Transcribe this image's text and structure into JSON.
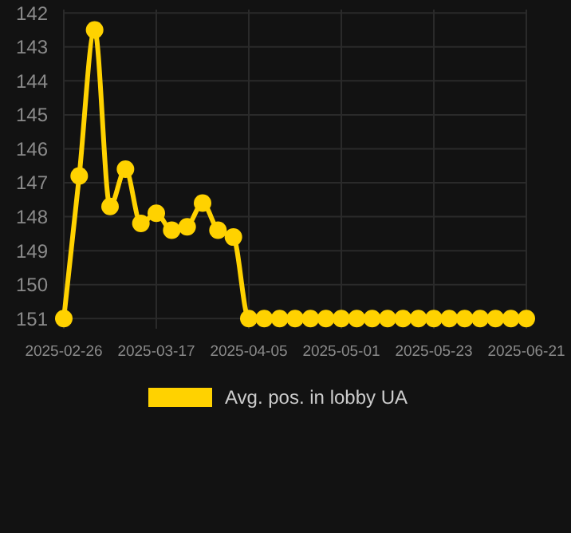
{
  "chart_data": {
    "type": "line",
    "categories": [
      "2025-02-26",
      null,
      null,
      null,
      null,
      null,
      "2025-03-17",
      null,
      null,
      null,
      null,
      null,
      "2025-04-05",
      null,
      null,
      null,
      null,
      null,
      "2025-05-01",
      null,
      null,
      null,
      null,
      null,
      "2025-05-23",
      null,
      null,
      null,
      null,
      null,
      "2025-06-21"
    ],
    "series": [
      {
        "name": "Avg. pos. in lobby UA",
        "color": "#ffd200",
        "values": [
          151,
          146.8,
          142.5,
          147.7,
          146.6,
          148.2,
          147.9,
          148.4,
          148.3,
          147.6,
          148.4,
          148.6,
          151,
          151,
          151,
          151,
          151,
          151,
          151,
          151,
          151,
          151,
          151,
          151,
          151,
          151,
          151,
          151,
          151,
          151,
          151
        ]
      }
    ],
    "ylim": [
      151.3,
      141.9
    ],
    "yticks": [
      142,
      143,
      144,
      145,
      146,
      147,
      148,
      149,
      150,
      151
    ],
    "grid": true,
    "legend": "bottom",
    "marker": "circle",
    "line_style": "solid"
  }
}
